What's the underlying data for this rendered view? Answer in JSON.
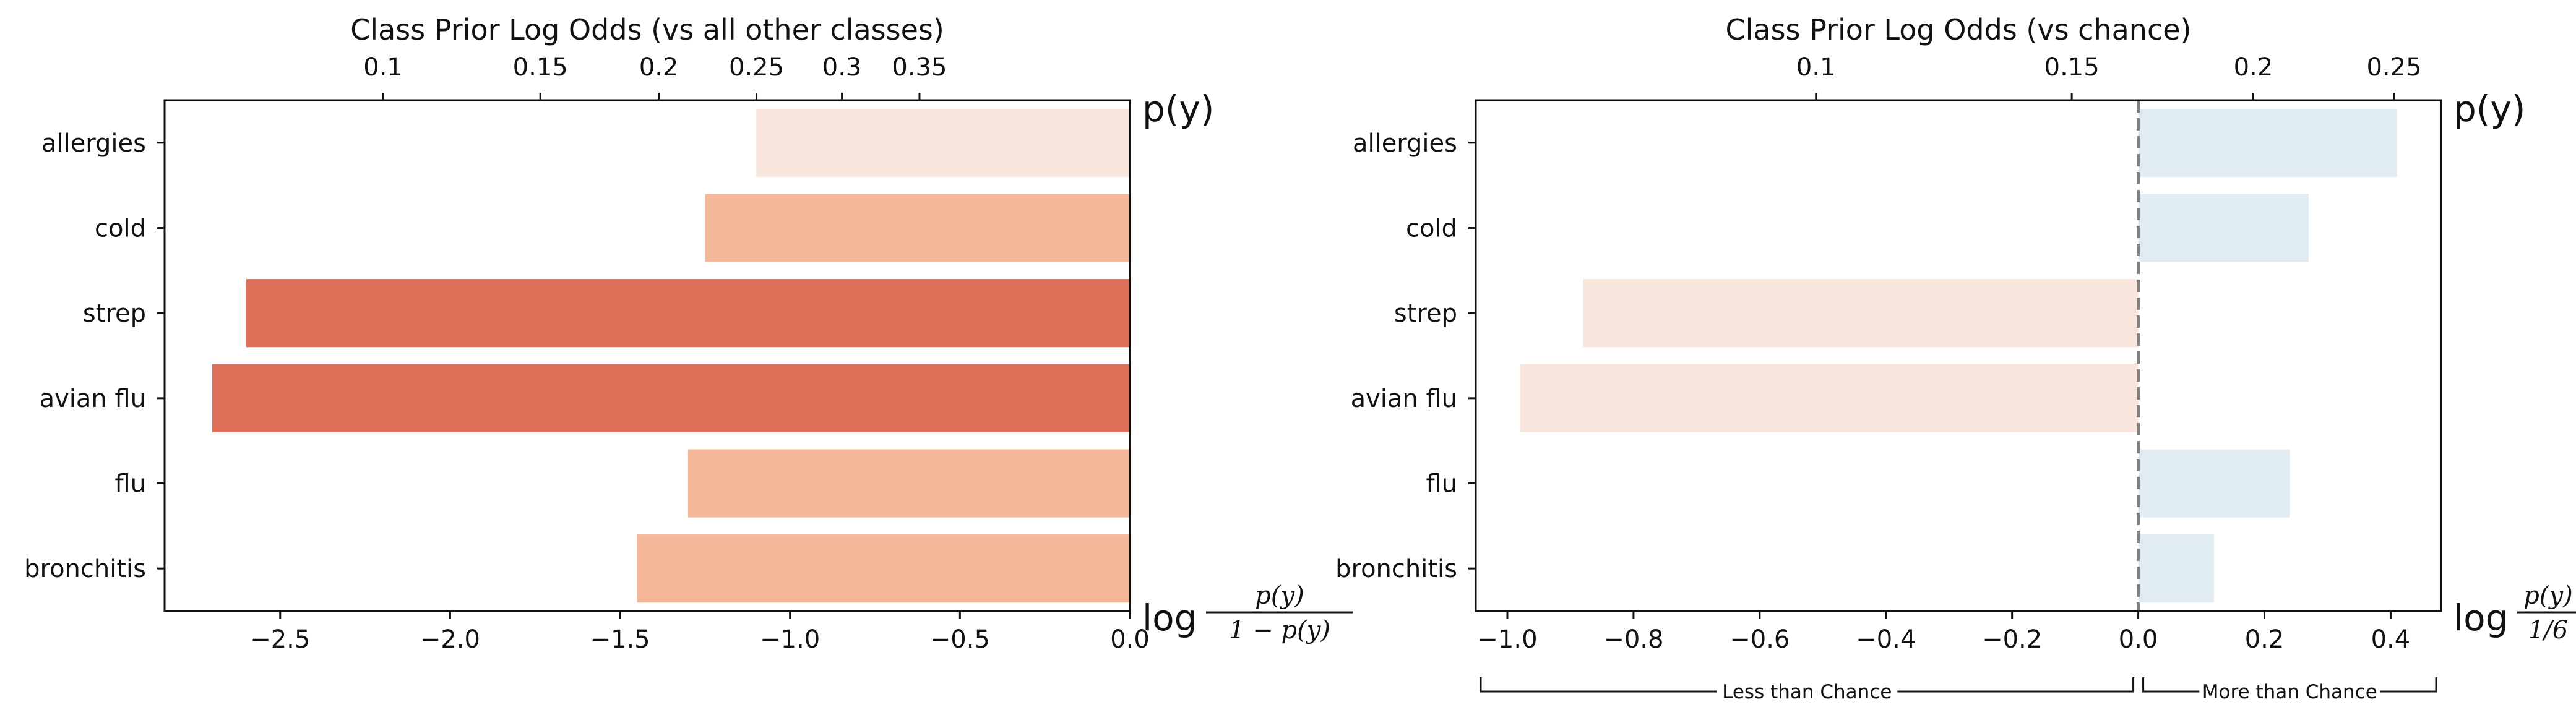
{
  "colors": {
    "deep_red": "#de6f58",
    "salmon": "#f5b799",
    "peach": "#f8e6dc",
    "light_blue": "#e0ebf2",
    "chance_line": "#7f7f7f",
    "axis": "#111111"
  },
  "chart_data": [
    {
      "type": "bar",
      "orientation": "horizontal",
      "title": "Class Prior Log Odds (vs all other classes)",
      "categories": [
        "allergies",
        "cold",
        "strep",
        "avian flu",
        "flu",
        "bronchitis"
      ],
      "values": [
        -1.1,
        -1.25,
        -2.6,
        -2.7,
        -1.3,
        -1.45
      ],
      "bar_colors": [
        "peach",
        "salmon",
        "deep_red",
        "deep_red",
        "salmon",
        "salmon"
      ],
      "xlim": [
        -2.84,
        0.0
      ],
      "x_ticks": [
        -2.5,
        -2.0,
        -1.5,
        -1.0,
        -0.5,
        0.0
      ],
      "x_tick_labels": [
        "−2.5",
        "−2.0",
        "−1.5",
        "−1.0",
        "−0.5",
        "0.0"
      ],
      "top_axis": {
        "label": "p(y)",
        "ticks": [
          0.1,
          0.15,
          0.2,
          0.25,
          0.3,
          0.35
        ],
        "tick_labels": [
          "0.1",
          "0.15",
          "0.2",
          "0.25",
          "0.3",
          "0.35"
        ]
      },
      "bottom_axis_label": {
        "prefix": "log",
        "numerator": "p(y)",
        "denominator": "1 − p(y)"
      },
      "grid": false
    },
    {
      "type": "bar",
      "orientation": "horizontal",
      "title": "Class Prior Log Odds (vs chance)",
      "categories": [
        "allergies",
        "cold",
        "strep",
        "avian flu",
        "flu",
        "bronchitis"
      ],
      "values": [
        0.41,
        0.27,
        -0.88,
        -0.98,
        0.24,
        0.12
      ],
      "bar_colors": [
        "light_blue",
        "light_blue",
        "peach",
        "peach",
        "light_blue",
        "light_blue"
      ],
      "xlim": [
        -1.05,
        0.48
      ],
      "x_ticks": [
        -1.0,
        -0.8,
        -0.6,
        -0.4,
        -0.2,
        0.0,
        0.2,
        0.4
      ],
      "x_tick_labels": [
        "−1.0",
        "−0.8",
        "−0.6",
        "−0.4",
        "−0.2",
        "0.0",
        "0.2",
        "0.4"
      ],
      "reference_line": {
        "x": 0.0,
        "style": "dashed"
      },
      "top_axis": {
        "label": "p(y)",
        "ticks": [
          0.1,
          0.15,
          0.2,
          0.25
        ],
        "tick_labels": [
          "0.1",
          "0.15",
          "0.2",
          "0.25"
        ]
      },
      "bottom_axis_label": {
        "prefix": "log",
        "numerator": "p(y)",
        "denominator": "1/6"
      },
      "braces": [
        {
          "label": "Less than Chance",
          "from": -1.05,
          "to": 0.0
        },
        {
          "label": "More than Chance",
          "from": 0.0,
          "to": 0.48
        }
      ],
      "grid": false
    }
  ]
}
